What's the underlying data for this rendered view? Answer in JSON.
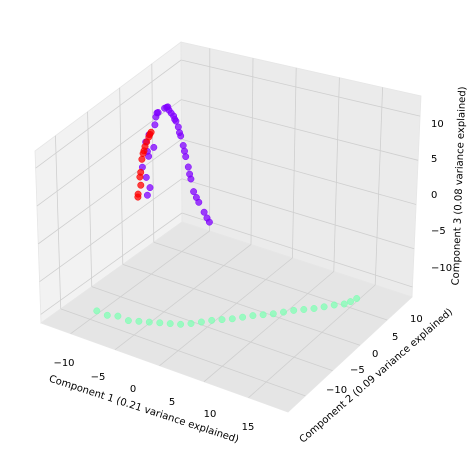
{
  "chart_data": {
    "type": "scatter3d",
    "title": "",
    "xlabel": "Component 1 (0.21 variance explained)",
    "ylabel": "Component 2 (0.09 variance explained)",
    "zlabel": "Component 3 (0.08 variance explained)",
    "x_ticks": [
      "−10",
      "−5",
      "0",
      "5",
      "10",
      "15"
    ],
    "y_ticks": [
      "10",
      "5",
      "0",
      "−5",
      "−10"
    ],
    "z_ticks": [
      "10",
      "5",
      "0",
      "−5",
      "−10"
    ],
    "grid": true,
    "legend": "none",
    "clusters": [
      {
        "color": "#8000ff",
        "description": "purple arc (upper)",
        "points": [
          [
            -14,
            8,
            -6
          ],
          [
            -14.5,
            8.5,
            -4
          ],
          [
            -14.3,
            7.5,
            -2
          ],
          [
            -14,
            8,
            0
          ],
          [
            -13.5,
            7,
            2
          ],
          [
            -13,
            8,
            4
          ],
          [
            -12.5,
            7.5,
            5.5
          ],
          [
            -12,
            7,
            6.5
          ],
          [
            -11,
            7,
            7.5
          ],
          [
            -10,
            6,
            8.5
          ],
          [
            -9,
            5,
            9
          ],
          [
            -8,
            4,
            9.5
          ],
          [
            -7,
            3,
            10
          ],
          [
            -6,
            2,
            10.2
          ],
          [
            -5,
            1,
            10.3
          ],
          [
            -4,
            0,
            10
          ],
          [
            -3,
            -1,
            9.6
          ],
          [
            -2,
            -2,
            9
          ],
          [
            -1,
            -3,
            8.5
          ],
          [
            0,
            -4,
            7.8
          ],
          [
            1,
            -5,
            7
          ],
          [
            2,
            -5.5,
            6.2
          ],
          [
            3,
            -6,
            5.5
          ],
          [
            4,
            -6.5,
            4.8
          ],
          [
            -13.8,
            8.2,
            -5
          ],
          [
            -13.2,
            7.2,
            3
          ],
          [
            -11.5,
            6.5,
            7
          ],
          [
            -9.5,
            5.5,
            9
          ],
          [
            -6.5,
            2.5,
            10
          ],
          [
            -4.5,
            0.5,
            10
          ],
          [
            -2.5,
            -1.5,
            9.3
          ],
          [
            -0.5,
            -3.5,
            8
          ],
          [
            1.5,
            -5.2,
            6.5
          ],
          [
            3.5,
            -6.2,
            5
          ],
          [
            -14.2,
            8.5,
            -1
          ],
          [
            -13,
            7.8,
            1
          ]
        ]
      },
      {
        "color": "#ff0000",
        "description": "red band (inner)",
        "points": [
          [
            -14.5,
            7,
            -5.5
          ],
          [
            -14,
            6.8,
            -4
          ],
          [
            -13.8,
            6.5,
            -2
          ],
          [
            -13.5,
            6.3,
            0
          ],
          [
            -13,
            6,
            1.5
          ],
          [
            -12.5,
            5.8,
            3
          ],
          [
            -12,
            5.5,
            4
          ],
          [
            -11.5,
            5.2,
            5
          ],
          [
            -14.2,
            6.9,
            -3
          ],
          [
            -13.2,
            6.1,
            1
          ],
          [
            -12.8,
            5.9,
            2.2
          ],
          [
            -11.8,
            5.4,
            4.5
          ],
          [
            -14.6,
            7.1,
            -6
          ]
        ]
      },
      {
        "color": "#80ffb4",
        "description": "green arc (lower)",
        "points": [
          [
            -8,
            -10,
            -10
          ],
          [
            -6,
            -9,
            -10.5
          ],
          [
            -4,
            -8,
            -11
          ],
          [
            -2,
            -7,
            -11
          ],
          [
            0,
            -6,
            -11
          ],
          [
            2,
            -5,
            -10.5
          ],
          [
            4,
            -4,
            -10
          ],
          [
            6,
            -3,
            -9.5
          ],
          [
            8,
            -2,
            -9
          ],
          [
            10,
            -1,
            -8.5
          ],
          [
            12,
            0,
            -8
          ],
          [
            14,
            1,
            -7.5
          ],
          [
            16,
            2,
            -7
          ],
          [
            17,
            3,
            -6.5
          ],
          [
            -7,
            -9.5,
            -10.5
          ],
          [
            -5,
            -8.5,
            -11
          ],
          [
            -3,
            -7.5,
            -11
          ],
          [
            -1,
            -6.5,
            -11
          ],
          [
            1,
            -5.5,
            -10.8
          ],
          [
            3,
            -4.5,
            -10.2
          ],
          [
            5,
            -3.5,
            -9.8
          ],
          [
            7,
            -2.5,
            -9.2
          ],
          [
            9,
            -1.5,
            -8.8
          ],
          [
            11,
            -0.5,
            -8.2
          ],
          [
            13,
            0.5,
            -7.8
          ],
          [
            15,
            1.5,
            -7.2
          ],
          [
            16.5,
            2.5,
            -6.8
          ]
        ]
      }
    ]
  }
}
